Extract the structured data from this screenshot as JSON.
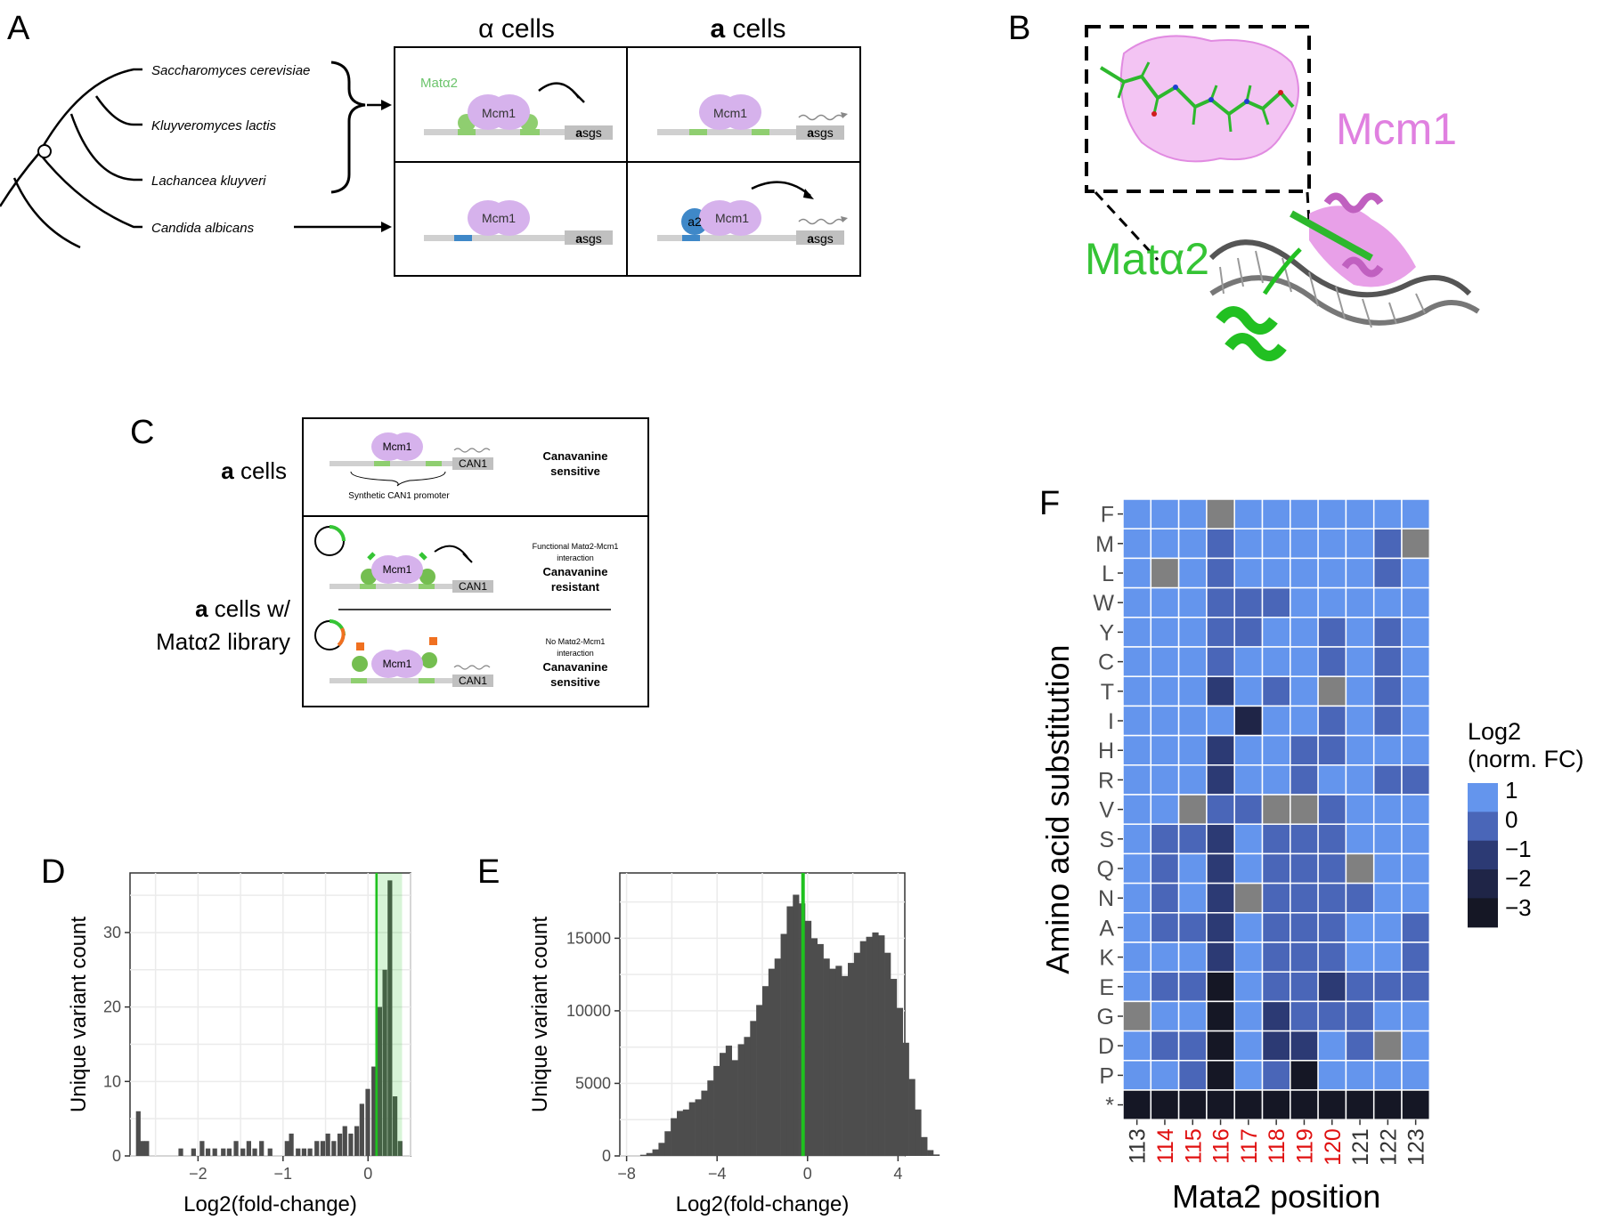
{
  "panel_labels": {
    "a": "A",
    "b": "B",
    "c": "C",
    "d": "D",
    "e": "E",
    "f": "F"
  },
  "panel_a": {
    "species": [
      "Saccharomyces cerevisiae",
      "Kluyveromyces lactis",
      "Lachancea kluyveri",
      "Candida albicans"
    ],
    "header_alpha": "α cells",
    "header_a_bold": "a",
    "header_a_rest": " cells",
    "mata2_label": "Matα2",
    "mcm1_label": "Mcm1",
    "asgs_bold": "a",
    "asgs_rest": "sgs",
    "a2_label": "a2"
  },
  "panel_b": {
    "mcm1_label": "Mcm1",
    "mata2_label": "Matα2"
  },
  "panel_c": {
    "row1_bold": "a",
    "row1_rest": " cells",
    "row2_bold": "a",
    "row2_rest": " cells w/",
    "row2_line2": "Matα2 library",
    "mcm1": "Mcm1",
    "can1": "CAN1",
    "promoter": "Synthetic CAN1 promoter",
    "sensitive_1": "Canavanine",
    "sensitive_2": "sensitive",
    "functional_1": "Functional Matα2-Mcm1",
    "functional_2": "interaction",
    "resistant_1": "Canavanine",
    "resistant_2": "resistant",
    "none_1": "No Matα2-Mcm1",
    "none_2": "interaction",
    "sens2_1": "Canavanine",
    "sens2_2": "sensitive"
  },
  "colors": {
    "grid_high": "#6495ED",
    "grid_mid": "#4A66B8",
    "grid_low": "#2C3A74",
    "grid_min": "#151725",
    "na": "#808080",
    "green": "#1FC21F",
    "bar": "#4D4D4D",
    "mcm1": "#D6B2EC",
    "pink": "#E080E0",
    "red": "#E01010"
  },
  "chart_data": [
    {
      "type": "bar",
      "panel": "D",
      "xlabel": "Log2(fold-change)",
      "ylabel": "Unique variant count",
      "xlim": [
        -2.8,
        0.5
      ],
      "ylim": [
        0,
        38
      ],
      "xticks": [
        -2,
        -1,
        0
      ],
      "xtick_labels": [
        "−2",
        "−1",
        "0"
      ],
      "yticks": [
        0,
        10,
        20,
        30
      ],
      "ytick_labels": [
        "0",
        "10",
        "20",
        "30"
      ],
      "reference_line": 0.1,
      "bins": [
        [
          -2.7,
          6
        ],
        [
          -2.65,
          2
        ],
        [
          -2.6,
          2
        ],
        [
          -2.2,
          1
        ],
        [
          -2.05,
          1
        ],
        [
          -1.95,
          2
        ],
        [
          -1.88,
          1
        ],
        [
          -1.8,
          1
        ],
        [
          -1.7,
          1
        ],
        [
          -1.63,
          1
        ],
        [
          -1.55,
          2
        ],
        [
          -1.47,
          1
        ],
        [
          -1.4,
          2
        ],
        [
          -1.33,
          1
        ],
        [
          -1.25,
          2
        ],
        [
          -1.15,
          1
        ],
        [
          -0.95,
          2
        ],
        [
          -0.9,
          3
        ],
        [
          -0.82,
          1
        ],
        [
          -0.75,
          1
        ],
        [
          -0.68,
          1
        ],
        [
          -0.6,
          2
        ],
        [
          -0.53,
          2
        ],
        [
          -0.47,
          3
        ],
        [
          -0.4,
          2
        ],
        [
          -0.33,
          3
        ],
        [
          -0.27,
          4
        ],
        [
          -0.2,
          3
        ],
        [
          -0.13,
          4
        ],
        [
          -0.07,
          7
        ],
        [
          0.0,
          9
        ],
        [
          0.07,
          12
        ],
        [
          0.14,
          20
        ],
        [
          0.2,
          25
        ],
        [
          0.26,
          37
        ],
        [
          0.32,
          8
        ],
        [
          0.38,
          2
        ]
      ],
      "bin_width": 0.06
    },
    {
      "type": "bar",
      "panel": "E",
      "xlabel": "Log2(fold-change)",
      "ylabel": "Unique variant count",
      "xlim": [
        -8.3,
        4.3
      ],
      "ylim": [
        0,
        19500
      ],
      "xticks": [
        -8,
        -4,
        0,
        4
      ],
      "xtick_labels": [
        "−8",
        "−4",
        "0",
        "4"
      ],
      "yticks": [
        0,
        5000,
        10000,
        15000
      ],
      "ytick_labels": [
        "0",
        "5000",
        "10000",
        "15000"
      ],
      "reference_line": -0.2,
      "bin_width": 0.27,
      "values": [
        80,
        200,
        450,
        900,
        1700,
        2600,
        3100,
        3200,
        3700,
        3900,
        4500,
        5200,
        6200,
        7100,
        7600,
        6600,
        7700,
        8200,
        9300,
        10400,
        11700,
        12900,
        13600,
        15300,
        17200,
        18000,
        17400,
        16200,
        15000,
        14600,
        13600,
        12900,
        13100,
        12400,
        13300,
        14000,
        14800,
        15100,
        15400,
        15200,
        14000,
        12200,
        10200,
        7800,
        5300,
        3200,
        1300,
        400,
        100
      ],
      "x_start": -7.4
    },
    {
      "type": "heatmap",
      "panel": "F",
      "xlabel": "Mata2 position",
      "ylabel": "Amino acid substitution",
      "legend_title_1": "Log2",
      "legend_title_2": "(norm. FC)",
      "legend_ticks": [
        "1",
        "0",
        "−1",
        "−2",
        "−3"
      ],
      "positions": [
        "113",
        "114",
        "115",
        "116",
        "117",
        "118",
        "119",
        "120",
        "121",
        "122",
        "123"
      ],
      "position_highlight": [
        false,
        true,
        true,
        true,
        true,
        true,
        true,
        true,
        false,
        false,
        false
      ],
      "residues": [
        "F",
        "M",
        "L",
        "W",
        "Y",
        "C",
        "T",
        "I",
        "H",
        "R",
        "V",
        "S",
        "Q",
        "N",
        "A",
        "K",
        "E",
        "G",
        "D",
        "P",
        "*"
      ],
      "values": [
        [
          1,
          1,
          1,
          "NA",
          1,
          1,
          1,
          1,
          1,
          1,
          1
        ],
        [
          1,
          1,
          1,
          0,
          1,
          1,
          1,
          1,
          1,
          0,
          "NA"
        ],
        [
          1,
          "NA",
          1,
          0,
          1,
          1,
          1,
          1,
          1,
          0,
          1
        ],
        [
          1,
          1,
          1,
          0,
          0,
          0,
          1,
          1,
          1,
          1,
          1
        ],
        [
          1,
          1,
          1,
          0,
          0,
          1,
          1,
          0,
          1,
          0,
          1
        ],
        [
          1,
          1,
          1,
          0,
          1,
          1,
          1,
          0,
          1,
          0,
          1
        ],
        [
          1,
          1,
          1,
          -1,
          1,
          0,
          1,
          "NA",
          1,
          0,
          1
        ],
        [
          1,
          1,
          1,
          1,
          -2,
          1,
          1,
          0,
          1,
          0,
          1
        ],
        [
          1,
          1,
          1,
          -1,
          1,
          1,
          0,
          0,
          1,
          1,
          1
        ],
        [
          1,
          1,
          1,
          -1,
          1,
          1,
          0,
          1,
          1,
          0,
          0
        ],
        [
          1,
          1,
          "NA",
          0,
          0,
          "NA",
          "NA",
          0,
          1,
          1,
          1
        ],
        [
          1,
          0,
          0,
          -1,
          1,
          0,
          0,
          0,
          1,
          1,
          1
        ],
        [
          1,
          0,
          1,
          -1,
          1,
          0,
          0,
          0,
          "NA",
          1,
          1
        ],
        [
          1,
          0,
          1,
          -1,
          "NA",
          0,
          0,
          0,
          0,
          1,
          1
        ],
        [
          1,
          0,
          0,
          -1,
          1,
          0,
          0,
          0,
          1,
          1,
          0
        ],
        [
          1,
          1,
          1,
          -1,
          1,
          0,
          0,
          0,
          1,
          1,
          0
        ],
        [
          1,
          0,
          0,
          -3,
          1,
          0,
          0,
          -1,
          0,
          0,
          0
        ],
        [
          "NA",
          1,
          1,
          -3,
          1,
          -1,
          0,
          0,
          0,
          1,
          1
        ],
        [
          1,
          0,
          0,
          -3,
          1,
          -1,
          -1,
          1,
          0,
          "NA",
          1
        ],
        [
          1,
          1,
          0,
          -3,
          1,
          0,
          -3,
          1,
          1,
          1,
          1
        ],
        [
          -3,
          -3,
          -3,
          -3,
          -3,
          -3,
          -3,
          -3,
          -3,
          -3,
          -3
        ]
      ]
    }
  ]
}
